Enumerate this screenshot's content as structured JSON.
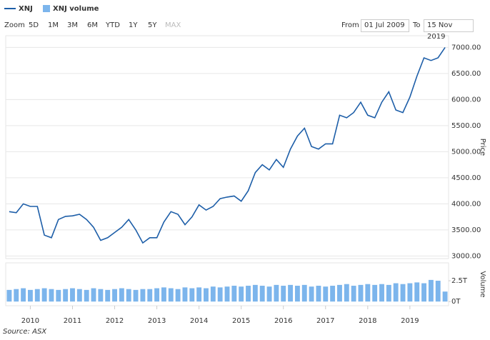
{
  "toolbar": {
    "zoom_label": "Zoom",
    "zoom_buttons": [
      "5D",
      "1M",
      "3M",
      "6M",
      "YTD",
      "1Y",
      "5Y",
      "MAX"
    ],
    "from_label": "From",
    "from_value": "01 Jul 2009",
    "to_label": "To",
    "to_value": "15 Nov 2019"
  },
  "source": "Source: ASX",
  "chart_data": [
    {
      "type": "line",
      "y_label": "Price",
      "series": [
        {
          "name": "XNJ",
          "color": "#1d5ea8",
          "values": [
            3850,
            3830,
            4000,
            3950,
            3950,
            3400,
            3350,
            3700,
            3760,
            3770,
            3800,
            3700,
            3550,
            3300,
            3350,
            3450,
            3550,
            3700,
            3500,
            3250,
            3350,
            3350,
            3650,
            3850,
            3800,
            3600,
            3750,
            3980,
            3880,
            3950,
            4100,
            4130,
            4150,
            4050,
            4250,
            4600,
            4750,
            4650,
            4850,
            4700,
            5050,
            5300,
            5450,
            5100,
            5050,
            5150,
            5150,
            5700,
            5650,
            5750,
            5950,
            5700,
            5650,
            5950,
            6150,
            5800,
            5750,
            6050,
            6450,
            6800,
            6750,
            6800,
            7000
          ]
        }
      ],
      "ylim": [
        2950,
        7225
      ],
      "yticks": [
        {
          "value": 3000,
          "label": "3000.00"
        },
        {
          "value": 3500,
          "label": "3500.00"
        },
        {
          "value": 4000,
          "label": "4000.00"
        },
        {
          "value": 4500,
          "label": "4500.00"
        },
        {
          "value": 5000,
          "label": "5000.00"
        },
        {
          "value": 5500,
          "label": "5500.00"
        },
        {
          "value": 6000,
          "label": "6000.00"
        },
        {
          "value": 6500,
          "label": "6500.00"
        },
        {
          "value": 7000,
          "label": "7000.00"
        }
      ],
      "grid": true
    },
    {
      "type": "bar",
      "y_label": "Volume",
      "categories": [
        null,
        null,
        null,
        "2010",
        null,
        null,
        null,
        null,
        null,
        "2011",
        null,
        null,
        null,
        null,
        null,
        "2012",
        null,
        null,
        null,
        null,
        null,
        "2013",
        null,
        null,
        null,
        null,
        null,
        "2014",
        null,
        null,
        null,
        null,
        null,
        "2015",
        null,
        null,
        null,
        null,
        null,
        "2016",
        null,
        null,
        null,
        null,
        null,
        "2017",
        null,
        null,
        null,
        null,
        null,
        "2018",
        null,
        null,
        null,
        null,
        null,
        "2019",
        null,
        null,
        null,
        null,
        null
      ],
      "series": [
        {
          "name": "XNJ volume",
          "color": "#7cb5ec",
          "values": [
            1.4,
            1.5,
            1.6,
            1.4,
            1.5,
            1.6,
            1.5,
            1.4,
            1.5,
            1.6,
            1.5,
            1.4,
            1.6,
            1.5,
            1.4,
            1.5,
            1.6,
            1.5,
            1.4,
            1.5,
            1.5,
            1.6,
            1.7,
            1.6,
            1.5,
            1.7,
            1.6,
            1.7,
            1.6,
            1.8,
            1.7,
            1.8,
            1.9,
            1.8,
            1.9,
            2.0,
            1.9,
            1.8,
            2.0,
            1.9,
            2.0,
            1.9,
            2.0,
            1.8,
            1.9,
            1.8,
            1.9,
            2.0,
            2.1,
            1.9,
            2.0,
            2.1,
            2.0,
            2.1,
            2.0,
            2.2,
            2.1,
            2.2,
            2.3,
            2.2,
            2.6,
            2.5,
            1.2
          ]
        }
      ],
      "ylim": [
        -0.5,
        4.65
      ],
      "yticks": [
        {
          "value": 0,
          "label": "0T"
        },
        {
          "value": 2.5,
          "label": "2.5T"
        }
      ],
      "grid": false
    }
  ]
}
